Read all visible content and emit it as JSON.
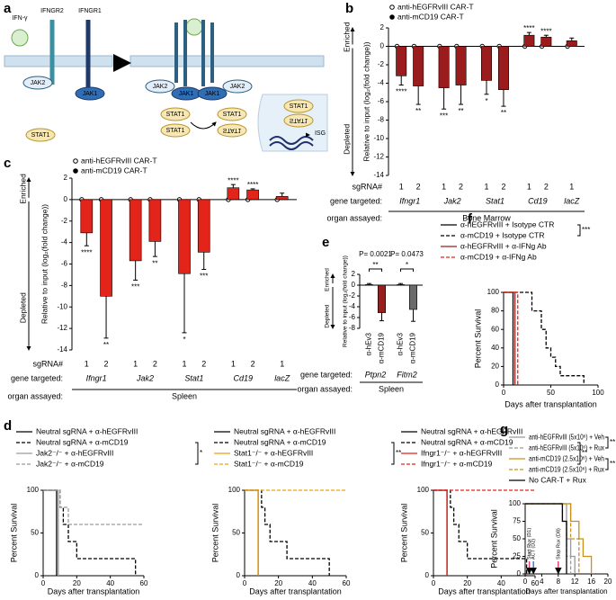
{
  "diagram": {
    "panel": "a",
    "labels": [
      "IFN-γ",
      "IFNGR2",
      "IFNGR1",
      "JAK2",
      "JAK1",
      "STAT1",
      "JAK2",
      "JAK1",
      "JAK1",
      "JAK2",
      "STAT1",
      "STAT1",
      "STAT1",
      "STAT1",
      "STAT1",
      "STAT1",
      "ISG"
    ]
  },
  "chart_data": [
    {
      "panel": "b",
      "type": "bar",
      "y_label": "Relative to input (log₂(fold change))",
      "enriched": "Enriched",
      "depleted": "Depleted",
      "category_label": "sgRNA#",
      "group_label": "gene targeted:",
      "organ_label": "organ assayed:",
      "organ": "Bone Marrow",
      "groups": [
        {
          "name": "Ifngr1",
          "categories": [
            "1",
            "2"
          ]
        },
        {
          "name": "Jak2",
          "categories": [
            "1",
            "2"
          ]
        },
        {
          "name": "Stat1",
          "categories": [
            "1",
            "2"
          ]
        },
        {
          "name": "Cd19",
          "categories": [
            "1",
            "2"
          ]
        },
        {
          "name": "lacZ",
          "categories": [
            "1"
          ]
        }
      ],
      "series": [
        {
          "name": "anti-hEGFRvIII CAR-T",
          "marker": "open-circle",
          "values": [
            0,
            0,
            0,
            0,
            0,
            0,
            0,
            0,
            0
          ]
        },
        {
          "name": "anti-mCD19 CAR-T",
          "color": "#9b1c1c",
          "values": [
            -3.2,
            -4.3,
            -4.5,
            -4.2,
            -3.7,
            -4.7,
            1.2,
            1.0,
            0.6
          ],
          "errors": [
            1.0,
            2.0,
            2.3,
            2.1,
            1.5,
            1.8,
            0.3,
            0.2,
            0.3
          ]
        }
      ],
      "significance": [
        "****",
        "**",
        "***",
        "**",
        "*",
        "**",
        "****",
        "****",
        null
      ],
      "ylim": [
        -14,
        2
      ],
      "yticks": [
        -14,
        -12,
        -10,
        -8,
        -6,
        -4,
        -2,
        0,
        2
      ]
    },
    {
      "panel": "c",
      "type": "bar",
      "y_label": "Relative to input (log₂(fold change))",
      "enriched": "Enriched",
      "depleted": "Depleted",
      "category_label": "sgRNA#",
      "group_label": "gene targeted:",
      "organ_label": "organ assayed:",
      "organ": "Spleen",
      "groups": [
        {
          "name": "Ifngr1",
          "categories": [
            "1",
            "2"
          ]
        },
        {
          "name": "Jak2",
          "categories": [
            "1",
            "2"
          ]
        },
        {
          "name": "Stat1",
          "categories": [
            "1",
            "2"
          ]
        },
        {
          "name": "Cd19",
          "categories": [
            "1",
            "2"
          ]
        },
        {
          "name": "lacZ",
          "categories": [
            "1"
          ]
        }
      ],
      "series": [
        {
          "name": "anti-hEGFRvIII CAR-T",
          "marker": "open-circle",
          "values": [
            0,
            0,
            0,
            0,
            0,
            0,
            0,
            0,
            0
          ]
        },
        {
          "name": "anti-mCD19 CAR-T",
          "color": "#e3241b",
          "values": [
            -3.1,
            -9.0,
            -5.7,
            -3.9,
            -6.9,
            -4.9,
            1.1,
            0.9,
            0.3
          ],
          "errors": [
            1.2,
            3.9,
            1.8,
            1.4,
            5.5,
            1.6,
            0.3,
            0.1,
            0.3
          ]
        }
      ],
      "significance": [
        "****",
        "**",
        "***",
        "**",
        "*",
        "***",
        "****",
        "****",
        null
      ],
      "ylim": [
        -14,
        2
      ],
      "yticks": [
        -14,
        -12,
        -10,
        -8,
        -6,
        -4,
        -2,
        0,
        2
      ]
    },
    {
      "panel": "e",
      "type": "bar",
      "y_label": "Relative to input (log₂(fold change))",
      "enriched": "Enriched",
      "depleted": "Depleted",
      "group_label": "gene targeted:",
      "organ_label": "organ assayed:",
      "organ": "Spleen",
      "groups": [
        {
          "name": "Ptpn2",
          "categories": [
            "α-hEv3",
            "α-mCD19"
          ]
        },
        {
          "name": "Fitm2",
          "categories": [
            "α-hEv3",
            "α-mCD19"
          ]
        }
      ],
      "values": [
        0.1,
        -5.1,
        0.1,
        -4.5
      ],
      "errors": [
        0.2,
        1.5,
        0.2,
        2.2
      ],
      "colors": [
        "#ffffff",
        "#9b1c1c",
        "#ffffff",
        "#6b6b6b"
      ],
      "p_values": [
        "P= 0.0021",
        "P= 0.0473"
      ],
      "group_significance": [
        "**",
        "*"
      ],
      "ylim": [
        -8,
        2
      ],
      "yticks": [
        -8,
        -6,
        -4,
        -2,
        0,
        2
      ]
    },
    {
      "panel": "f",
      "type": "survival",
      "y_label": "Percent Survival",
      "x_label": "Days after transplantation",
      "xlim": [
        0,
        100
      ],
      "xticks": [
        0,
        50,
        100
      ],
      "ylim": [
        0,
        100
      ],
      "yticks": [
        0,
        20,
        40,
        60,
        80,
        100
      ],
      "significance": [
        "***"
      ],
      "series": [
        {
          "name": "α-hEGFRvIII + Isotype CTR",
          "color": "#000000",
          "dashed": false,
          "x": [
            0,
            10
          ],
          "values": [
            100,
            0
          ]
        },
        {
          "name": "α-mCD19 + Isotype CTR",
          "color": "#000000",
          "dashed": true,
          "x": [
            0,
            30,
            40,
            45,
            50,
            55,
            60,
            85
          ],
          "values": [
            100,
            80,
            60,
            40,
            30,
            20,
            10,
            0
          ]
        },
        {
          "name": "α-hEGFRvIII + α-IFNg Ab",
          "color": "#9b1c1c",
          "dashed": false,
          "x": [
            0,
            12
          ],
          "values": [
            100,
            0
          ]
        },
        {
          "name": "α-mCD19 + α-IFNg Ab",
          "color": "#e3241b",
          "dashed": true,
          "x": [
            0,
            15
          ],
          "values": [
            100,
            0
          ]
        }
      ]
    },
    {
      "panel": "d",
      "type": "survival",
      "y_label": "Percent Survival",
      "x_label": "Days after transplantation",
      "xlim": [
        0,
        60
      ],
      "xticks": [
        0,
        20,
        40,
        60
      ],
      "ylim": [
        0,
        100
      ],
      "yticks": [
        0,
        50,
        100
      ],
      "significance": [
        "*"
      ],
      "series": [
        {
          "name": "Neutral sgRNA + α-hEGFRvIII",
          "color": "#000000",
          "dashed": false,
          "x": [
            0,
            8
          ],
          "values": [
            100,
            0
          ]
        },
        {
          "name": "Neutral sgRNA + α-mCD19",
          "color": "#000000",
          "dashed": true,
          "x": [
            0,
            10,
            12,
            15,
            20,
            55
          ],
          "values": [
            100,
            80,
            60,
            40,
            20,
            0
          ]
        },
        {
          "name": "Jak2⁻/⁻ + α-hEGFRvIII",
          "color": "#9a9a9a",
          "dashed": false,
          "x": [
            0,
            9
          ],
          "values": [
            100,
            0
          ]
        },
        {
          "name": "Jak2⁻/⁻ + α-mCD19",
          "color": "#9a9a9a",
          "dashed": true,
          "x": [
            0,
            10,
            15,
            60
          ],
          "values": [
            100,
            80,
            60,
            60
          ]
        }
      ]
    },
    {
      "type": "survival",
      "y_label": "Percent Survival",
      "x_label": "Days after transplantation",
      "xlim": [
        0,
        60
      ],
      "xticks": [
        0,
        20,
        40,
        60
      ],
      "ylim": [
        0,
        100
      ],
      "yticks": [
        0,
        50,
        100
      ],
      "significance": [
        "**"
      ],
      "series": [
        {
          "name": "Neutral sgRNA + α-hEGFRvIII",
          "color": "#000000",
          "dashed": false,
          "x": [
            0,
            8
          ],
          "values": [
            100,
            0
          ]
        },
        {
          "name": "Neutral sgRNA + α-mCD19",
          "color": "#000000",
          "dashed": true,
          "x": [
            0,
            10,
            12,
            15,
            25,
            50
          ],
          "values": [
            100,
            80,
            60,
            40,
            20,
            0
          ]
        },
        {
          "name": "Stat1⁻/⁻ + α-hEGFRvIII",
          "color": "#f0a30a",
          "dashed": false,
          "x": [
            0,
            8
          ],
          "values": [
            100,
            0
          ]
        },
        {
          "name": "Stat1⁻/⁻ + α-mCD19",
          "color": "#f0a30a",
          "dashed": true,
          "x": [
            0,
            60
          ],
          "values": [
            100,
            100
          ]
        }
      ]
    },
    {
      "type": "survival",
      "y_label": "Percent Survival",
      "x_label": "Days after transplantation",
      "xlim": [
        0,
        60
      ],
      "xticks": [
        0,
        20,
        40,
        60
      ],
      "ylim": [
        0,
        100
      ],
      "yticks": [
        0,
        50,
        100
      ],
      "significance": [
        "**"
      ],
      "series": [
        {
          "name": "Neutral sgRNA + α-hEGFRvIII",
          "color": "#000000",
          "dashed": false,
          "x": [
            0,
            8
          ],
          "values": [
            100,
            0
          ]
        },
        {
          "name": "Neutral sgRNA + α-mCD19",
          "color": "#000000",
          "dashed": true,
          "x": [
            0,
            10,
            12,
            15,
            20,
            55
          ],
          "values": [
            100,
            80,
            60,
            40,
            20,
            0
          ]
        },
        {
          "name": "Ifngr1⁻/⁻ + α-hEGFRvIII",
          "color": "#e3241b",
          "dashed": false,
          "x": [
            0,
            8
          ],
          "values": [
            100,
            0
          ]
        },
        {
          "name": "Ifngr1⁻/⁻ + α-mCD19",
          "color": "#e3241b",
          "dashed": true,
          "x": [
            0,
            60
          ],
          "values": [
            100,
            100
          ]
        }
      ]
    },
    {
      "panel": "g",
      "type": "survival",
      "y_label": "Percent Survival",
      "x_label": "Days after transplantation",
      "xlim": [
        0,
        20
      ],
      "xticks": [
        0,
        4,
        8,
        12,
        16,
        20
      ],
      "ylim": [
        0,
        100
      ],
      "yticks": [
        0,
        25,
        50,
        75,
        100
      ],
      "significance": [
        "**",
        "**"
      ],
      "events": [
        {
          "day": 1,
          "label": "Start Rux (D1)",
          "color": "#e0457b"
        },
        {
          "day": 2,
          "label": "ACT (D2)",
          "color": "#3a7fd0"
        },
        {
          "day": 8,
          "label": "Stop Rux (D8)",
          "color": "#e0457b"
        }
      ],
      "series": [
        {
          "name": "anti-hEGFRvIII (5x10⁶) + Veh",
          "color": "#9a9a9a",
          "dashed": false,
          "x": [
            0,
            10,
            11,
            12
          ],
          "values": [
            100,
            50,
            25,
            0
          ]
        },
        {
          "name": "anti-hEGFRvIII (5x10⁶) + Rux",
          "color": "#9a9a9a",
          "dashed": true,
          "x": [
            0,
            9,
            10,
            11
          ],
          "values": [
            100,
            75,
            25,
            0
          ]
        },
        {
          "name": "anti-mCD19 (2.5x10⁶) + Veh",
          "color": "#c8901a",
          "dashed": false,
          "x": [
            0,
            11,
            13,
            14,
            16
          ],
          "values": [
            100,
            75,
            50,
            25,
            0
          ]
        },
        {
          "name": "anti-mCD19 (2.5x10⁶) + Rux",
          "color": "#c8901a",
          "dashed": true,
          "x": [
            0,
            11,
            13
          ],
          "values": [
            100,
            50,
            0
          ]
        },
        {
          "name": "No CAR-T + Rux",
          "color": "#000000",
          "dashed": false,
          "x": [
            0,
            9,
            10
          ],
          "values": [
            100,
            75,
            0
          ]
        }
      ]
    }
  ]
}
